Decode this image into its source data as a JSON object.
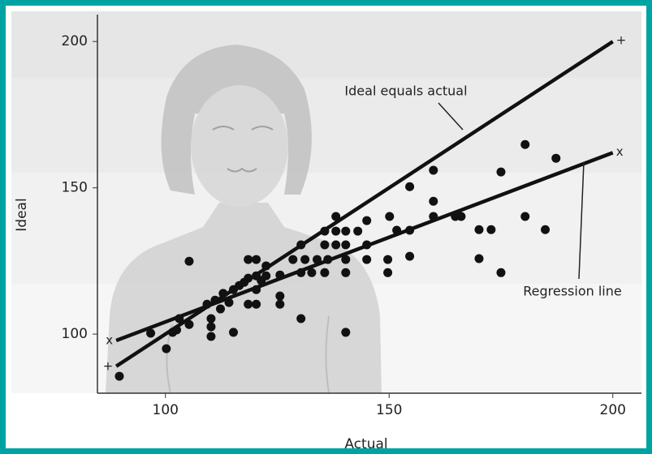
{
  "chart_data": {
    "type": "scatter",
    "x_label": "Actual",
    "y_label": "Ideal",
    "xlim": [
      84.8,
      206.4
    ],
    "ylim": [
      79.8,
      209.2
    ],
    "xticks": [
      100,
      150,
      200
    ],
    "yticks": [
      100,
      150,
      200
    ],
    "grid": false,
    "points": {
      "color": "#111111",
      "x": [
        89.7,
        96.7,
        100.2,
        101.6,
        102.5,
        103.1,
        105.3,
        105.3,
        109.3,
        110.2,
        110.2,
        110.2,
        111.1,
        112.3,
        112.9,
        114.2,
        115.2,
        115.2,
        116.5,
        117.6,
        118.5,
        118.5,
        118.5,
        120.3,
        120.3,
        120.3,
        120.3,
        121.4,
        122.5,
        122.5,
        125.6,
        125.6,
        125.6,
        128.5,
        130.3,
        130.3,
        130.3,
        131.2,
        132.7,
        133.9,
        135.6,
        135.6,
        135.6,
        136.3,
        138.1,
        138.1,
        138.1,
        140.3,
        140.3,
        140.3,
        140.3,
        140.3,
        143,
        145,
        145,
        145,
        149.7,
        149.7,
        150.1,
        151.7,
        154.6,
        154.6,
        154.6,
        159.9,
        159.9,
        159.9,
        164.8,
        166.1,
        170.1,
        170.1,
        172.8,
        175,
        175,
        180.4,
        180.4,
        184.9,
        187.3
      ],
      "y": [
        85.6,
        100.3,
        95,
        100.6,
        101.4,
        105.3,
        103.3,
        124.9,
        110.2,
        105.3,
        102.5,
        99.2,
        111.6,
        108.6,
        113.9,
        110.8,
        100.6,
        115.2,
        116.6,
        117.7,
        125.5,
        119.1,
        110.2,
        125.5,
        119.9,
        115.2,
        110.2,
        118.3,
        119.9,
        123.3,
        120.2,
        113,
        110.2,
        125.5,
        121,
        130.5,
        105.3,
        125.5,
        121,
        125.5,
        121,
        130.5,
        135.2,
        125.5,
        130.5,
        135.2,
        140.2,
        125.5,
        130.5,
        135.2,
        121,
        100.6,
        135.2,
        125.5,
        130.5,
        138.8,
        125.5,
        121,
        140.2,
        135.5,
        135.5,
        150.4,
        126.6,
        156,
        145.4,
        140.2,
        140.2,
        140.2,
        135.7,
        125.8,
        135.7,
        121,
        155.4,
        164.8,
        140.2,
        135.7,
        160.1
      ]
    },
    "lines": [
      {
        "name": "Ideal equals actual",
        "color": "#111111",
        "marker": "+",
        "x": [
          89,
          200
        ],
        "y": [
          89,
          200
        ]
      },
      {
        "name": "Regression line",
        "color": "#111111",
        "marker": "x",
        "x": [
          89,
          200
        ],
        "y": [
          97.8,
          162
        ]
      }
    ]
  }
}
